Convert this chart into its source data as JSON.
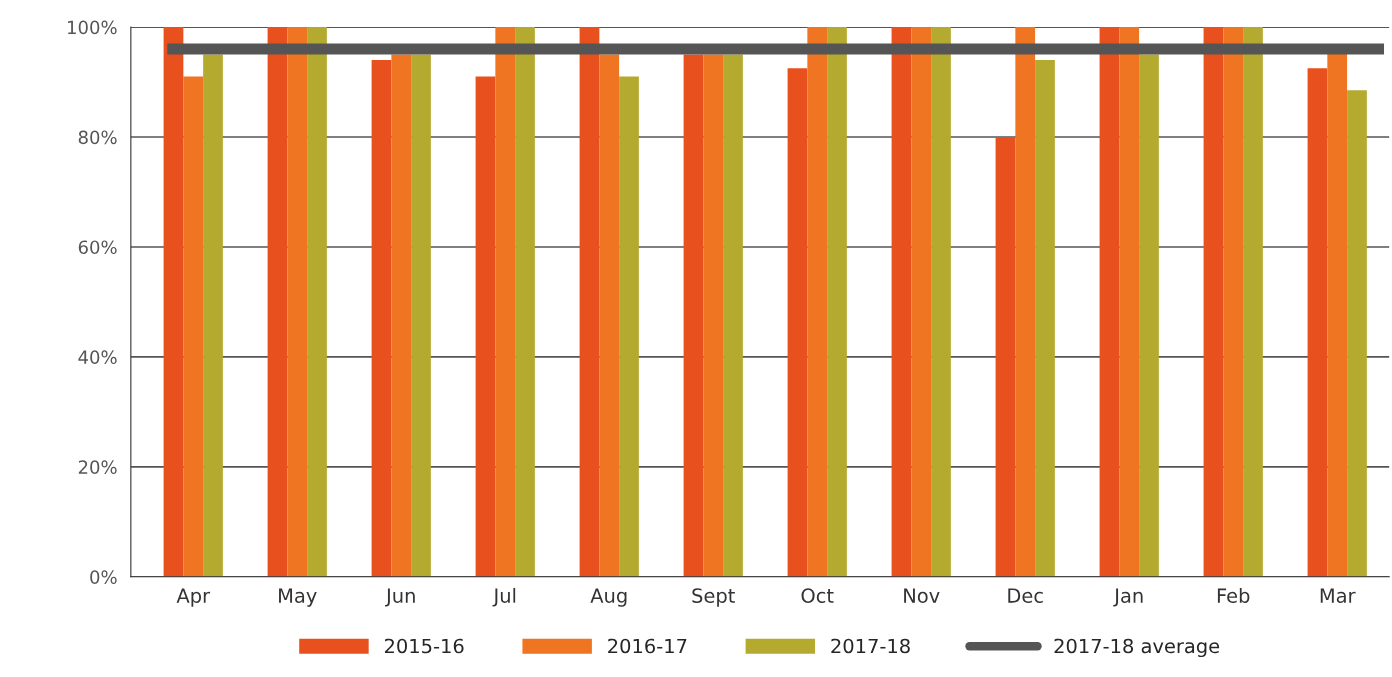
{
  "chart_data": {
    "type": "bar",
    "categories": [
      "Apr",
      "May",
      "Jun",
      "Jul",
      "Aug",
      "Sept",
      "Oct",
      "Nov",
      "Dec",
      "Jan",
      "Feb",
      "Mar"
    ],
    "series": [
      {
        "name": "2015-16",
        "color": "#e8501e",
        "values": [
          100,
          100,
          94,
          91,
          100,
          95,
          92.5,
          100,
          80,
          100,
          100,
          92.5
        ]
      },
      {
        "name": "2016-17",
        "color": "#ef7522",
        "values": [
          91,
          100,
          95,
          100,
          95,
          95,
          100,
          100,
          100,
          100,
          100,
          95.5
        ]
      },
      {
        "name": "2017-18",
        "color": "#b5aa30",
        "values": [
          95,
          100,
          95,
          100,
          91,
          95,
          100,
          100,
          94,
          95,
          100,
          88.5
        ]
      }
    ],
    "ref_lines": [
      {
        "axis": "y",
        "value": 96,
        "label": "2017-18 average",
        "color": "#555555"
      }
    ],
    "ylim": [
      0,
      100
    ],
    "yticks": [
      {
        "value": 0,
        "label": "0%"
      },
      {
        "value": 20,
        "label": "20%"
      },
      {
        "value": 40,
        "label": "40%"
      },
      {
        "value": 60,
        "label": "60%"
      },
      {
        "value": 80,
        "label": "80%"
      },
      {
        "value": 100,
        "label": "100%"
      }
    ],
    "grid": "y",
    "legend": "bottom"
  }
}
